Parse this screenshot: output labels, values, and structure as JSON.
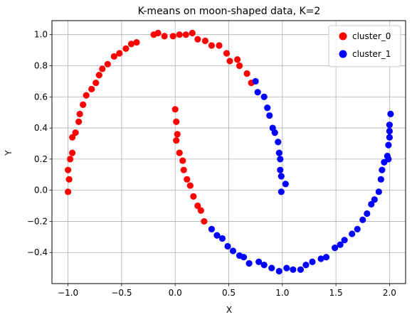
{
  "chart_data": {
    "type": "scatter",
    "title": "K-means on moon-shaped data, K=2",
    "xlabel": "X",
    "ylabel": "Y",
    "xlim": [
      -1.15,
      2.15
    ],
    "ylim": [
      -0.6,
      1.09
    ],
    "xticks": [
      -1.0,
      -0.5,
      0.0,
      0.5,
      1.0,
      1.5,
      2.0
    ],
    "xtick_labels": [
      "−1.0",
      "−0.5",
      "0.0",
      "0.5",
      "1.0",
      "1.5",
      "2.0"
    ],
    "yticks": [
      -0.4,
      -0.2,
      0.0,
      0.2,
      0.4,
      0.6,
      0.8,
      1.0
    ],
    "ytick_labels": [
      "−0.4",
      "−0.2",
      "0.0",
      "0.2",
      "0.4",
      "0.6",
      "0.8",
      "1.0"
    ],
    "grid": true,
    "legend_position": "top-right",
    "series": [
      {
        "name": "cluster_0",
        "color": "#ff0000",
        "points": [
          [
            -1.0,
            -0.01
          ],
          [
            -1.0,
            0.13
          ],
          [
            -0.99,
            0.07
          ],
          [
            -0.98,
            0.2
          ],
          [
            -0.96,
            0.24
          ],
          [
            -0.96,
            0.34
          ],
          [
            -0.93,
            0.37
          ],
          [
            -0.9,
            0.44
          ],
          [
            -0.89,
            0.49
          ],
          [
            -0.86,
            0.55
          ],
          [
            -0.83,
            0.61
          ],
          [
            -0.78,
            0.65
          ],
          [
            -0.74,
            0.69
          ],
          [
            -0.71,
            0.74
          ],
          [
            -0.68,
            0.78
          ],
          [
            -0.63,
            0.81
          ],
          [
            -0.57,
            0.86
          ],
          [
            -0.52,
            0.88
          ],
          [
            -0.46,
            0.91
          ],
          [
            -0.41,
            0.94
          ],
          [
            -0.36,
            0.95
          ],
          [
            -0.2,
            1.0
          ],
          [
            -0.16,
            1.01
          ],
          [
            -0.1,
            0.99
          ],
          [
            -0.02,
            0.99
          ],
          [
            0.04,
            1.0
          ],
          [
            0.1,
            1.0
          ],
          [
            0.16,
            1.01
          ],
          [
            0.21,
            0.97
          ],
          [
            0.28,
            0.96
          ],
          [
            0.34,
            0.93
          ],
          [
            0.41,
            0.93
          ],
          [
            0.48,
            0.88
          ],
          [
            0.51,
            0.83
          ],
          [
            0.58,
            0.84
          ],
          [
            0.6,
            0.8
          ],
          [
            0.67,
            0.75
          ],
          [
            0.71,
            0.69
          ],
          [
            0.0,
            0.52
          ],
          [
            0.01,
            0.44
          ],
          [
            0.02,
            0.36
          ],
          [
            0.01,
            0.32
          ],
          [
            0.04,
            0.24
          ],
          [
            0.07,
            0.19
          ],
          [
            0.08,
            0.13
          ],
          [
            0.11,
            0.07
          ],
          [
            0.14,
            0.03
          ],
          [
            0.17,
            -0.04
          ],
          [
            0.21,
            -0.1
          ],
          [
            0.24,
            -0.13
          ],
          [
            0.27,
            -0.2
          ]
        ]
      },
      {
        "name": "cluster_1",
        "color": "#0000ff",
        "points": [
          [
            0.75,
            0.7
          ],
          [
            0.77,
            0.63
          ],
          [
            0.83,
            0.6
          ],
          [
            0.86,
            0.53
          ],
          [
            0.88,
            0.48
          ],
          [
            0.91,
            0.4
          ],
          [
            0.93,
            0.37
          ],
          [
            0.96,
            0.31
          ],
          [
            0.97,
            0.24
          ],
          [
            0.98,
            0.2
          ],
          [
            0.98,
            0.13
          ],
          [
            0.99,
            0.09
          ],
          [
            0.99,
            -0.01
          ],
          [
            1.03,
            0.04
          ],
          [
            0.34,
            -0.25
          ],
          [
            0.39,
            -0.29
          ],
          [
            0.44,
            -0.31
          ],
          [
            0.49,
            -0.36
          ],
          [
            0.54,
            -0.39
          ],
          [
            0.6,
            -0.42
          ],
          [
            0.64,
            -0.43
          ],
          [
            0.69,
            -0.47
          ],
          [
            0.78,
            -0.46
          ],
          [
            0.83,
            -0.48
          ],
          [
            0.9,
            -0.5
          ],
          [
            0.97,
            -0.52
          ],
          [
            1.04,
            -0.5
          ],
          [
            1.1,
            -0.51
          ],
          [
            1.17,
            -0.51
          ],
          [
            1.22,
            -0.48
          ],
          [
            1.28,
            -0.46
          ],
          [
            1.36,
            -0.44
          ],
          [
            1.41,
            -0.43
          ],
          [
            1.49,
            -0.37
          ],
          [
            1.54,
            -0.35
          ],
          [
            1.58,
            -0.32
          ],
          [
            1.65,
            -0.28
          ],
          [
            1.7,
            -0.25
          ],
          [
            1.75,
            -0.19
          ],
          [
            1.79,
            -0.15
          ],
          [
            1.83,
            -0.09
          ],
          [
            1.86,
            -0.06
          ],
          [
            1.9,
            -0.01
          ],
          [
            1.92,
            0.07
          ],
          [
            1.93,
            0.13
          ],
          [
            1.95,
            0.18
          ],
          [
            1.99,
            0.2
          ],
          [
            1.98,
            0.22
          ],
          [
            1.99,
            0.29
          ],
          [
            2.0,
            0.34
          ],
          [
            2.0,
            0.38
          ],
          [
            2.0,
            0.42
          ],
          [
            2.01,
            0.49
          ]
        ]
      }
    ]
  }
}
